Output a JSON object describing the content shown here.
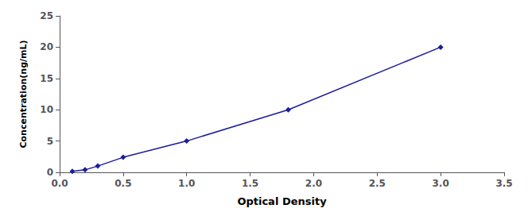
{
  "chart_data": {
    "type": "line",
    "xlabel": "Optical Density",
    "ylabel": "Concentration(ng/mL)",
    "x": [
      0.1,
      0.2,
      0.3,
      0.5,
      1.0,
      1.8,
      3.0
    ],
    "values": [
      0.15,
      0.4,
      1.0,
      2.4,
      5.0,
      10.0,
      20.0
    ],
    "color": "#1c1c9e",
    "marker": "diamond",
    "xlim": [
      0,
      3.5
    ],
    "ylim": [
      0,
      25
    ],
    "xticks": [
      {
        "value": 0,
        "label": "0.0"
      },
      0.5,
      {
        "value": 1.0,
        "label": "1.0"
      },
      1.5,
      {
        "value": 2.0,
        "label": "2.0"
      },
      2.5,
      {
        "value": 3.0,
        "label": "3.0"
      },
      3.5
    ],
    "yticks": [
      0,
      5,
      10,
      15,
      20,
      25
    ],
    "grid": false
  }
}
